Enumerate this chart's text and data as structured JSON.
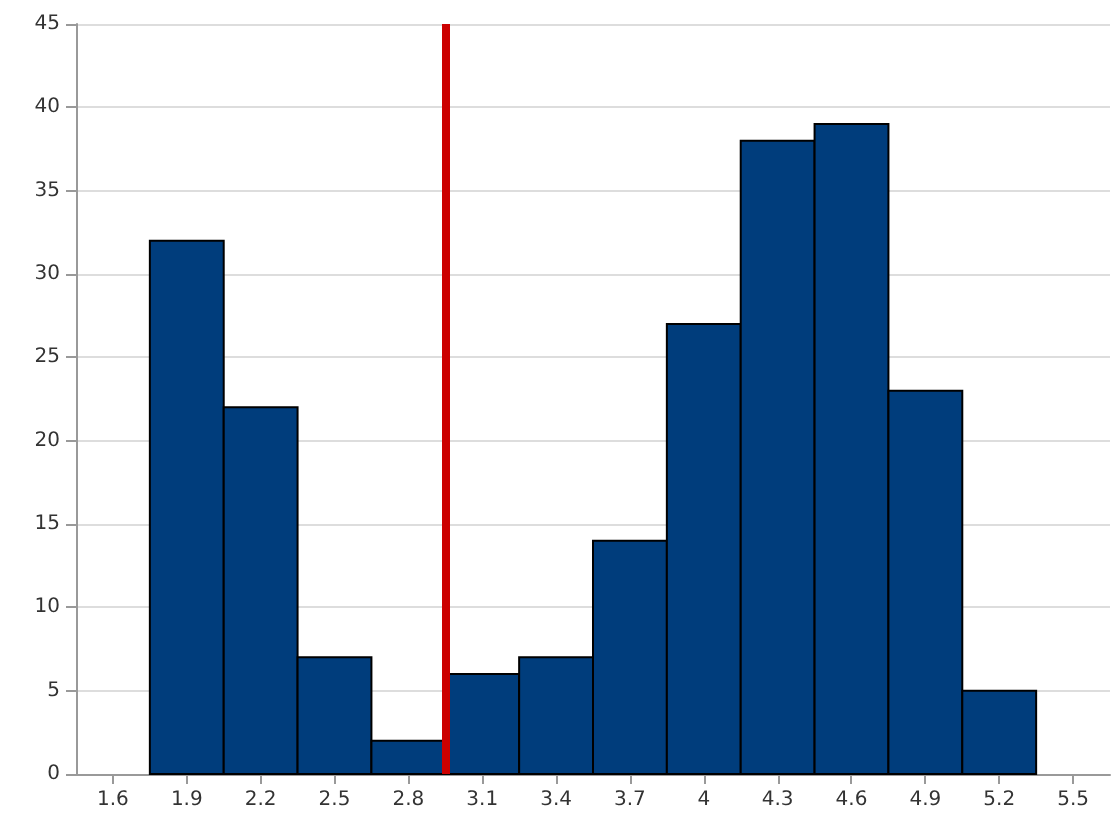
{
  "chart_data": {
    "type": "histogram",
    "bins": [
      1.75,
      2.05,
      2.35,
      2.65,
      2.95,
      3.25,
      3.55,
      3.85,
      4.15,
      4.45,
      4.75,
      5.05,
      5.35
    ],
    "values": [
      32,
      22,
      7,
      2,
      6,
      7,
      14,
      27,
      38,
      39,
      23,
      5
    ],
    "color": "#003d7c",
    "xlim": [
      1.45,
      5.65
    ],
    "xticks": [
      1.6,
      1.9,
      2.2,
      2.5,
      2.8,
      3.1,
      3.4,
      3.7,
      4,
      4.3,
      4.6,
      4.9,
      5.2,
      5.5
    ],
    "ylim": [
      0,
      45
    ],
    "yticks": [
      0,
      5,
      10,
      15,
      20,
      25,
      30,
      35,
      40,
      45
    ],
    "grid": "y",
    "ref_lines": [
      {
        "axis": "x",
        "value": 2.95,
        "color": "#cc0000"
      }
    ]
  }
}
